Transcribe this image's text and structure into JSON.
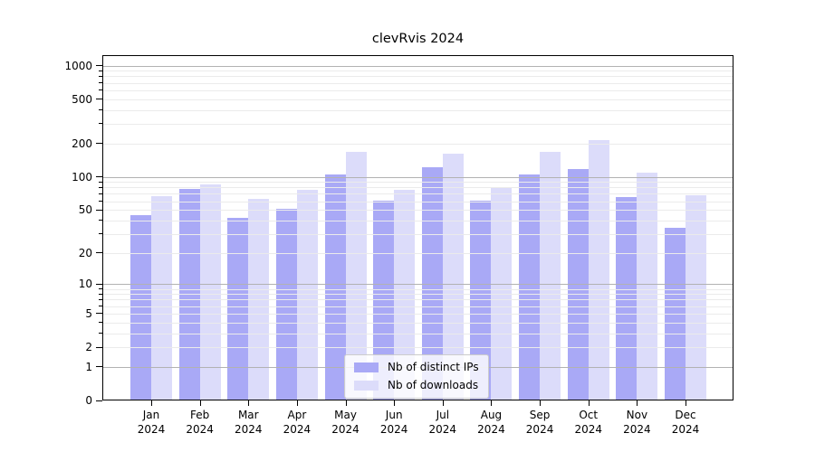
{
  "chart_data": {
    "type": "bar",
    "title": "clevRvis 2024",
    "categories": [
      "Jan 2024",
      "Feb 2024",
      "Mar 2024",
      "Apr 2024",
      "May 2024",
      "Jun 2024",
      "Jul 2024",
      "Aug 2024",
      "Sep 2024",
      "Oct 2024",
      "Nov 2024",
      "Dec 2024"
    ],
    "series": [
      {
        "name": "Nb of distinct IPs",
        "color": "#a9a9f6",
        "values": [
          45,
          78,
          42,
          51,
          105,
          61,
          122,
          61,
          105,
          117,
          65,
          34
        ]
      },
      {
        "name": "Nb of downloads",
        "color": "#dcdcfa",
        "values": [
          67,
          86,
          63,
          76,
          168,
          76,
          163,
          81,
          168,
          214,
          109,
          68
        ]
      }
    ],
    "xlabel": "",
    "ylabel": "",
    "yscale": "log1p",
    "yticks": [
      0,
      1,
      2,
      5,
      10,
      20,
      50,
      100,
      200,
      500,
      1000
    ],
    "ylim": [
      0,
      1240
    ],
    "grid": "on",
    "legend_position": "lower center"
  }
}
